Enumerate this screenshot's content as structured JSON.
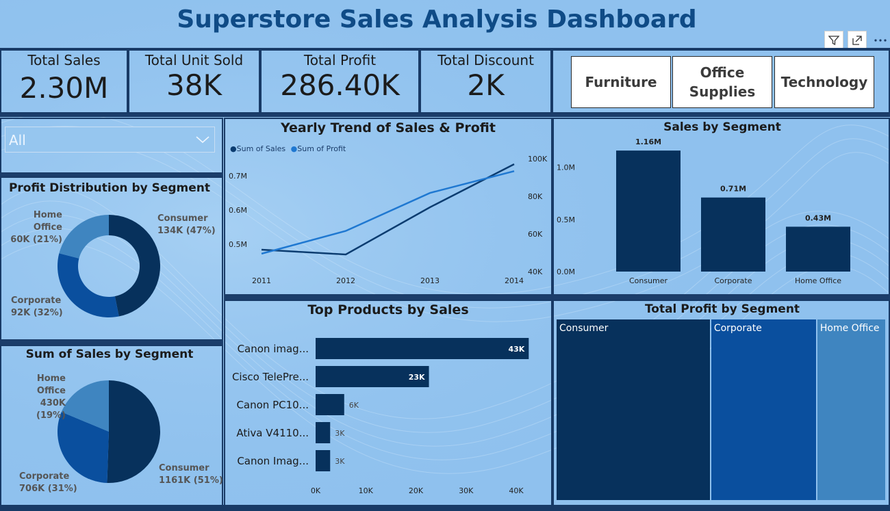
{
  "dashboard": {
    "title": "Superstore Sales Analysis Dashboard",
    "accent": "#0f4b86",
    "background": "#8fc1ee",
    "dark": "#07315c",
    "mid": "#0a4f9e",
    "light": "#3f85c0"
  },
  "kpis": [
    {
      "label": "Total Sales",
      "value": "2.30M"
    },
    {
      "label": "Total Unit Sold",
      "value": "38K"
    },
    {
      "label": "Total Profit",
      "value": "286.40K"
    },
    {
      "label": "Total Discount",
      "value": "2K"
    }
  ],
  "category_slicer": [
    "Furniture",
    "Office Supplies",
    "Technology"
  ],
  "visual_icons": [
    "filter-icon",
    "focus-mode-icon",
    "more-options-icon"
  ],
  "dropdown": {
    "value": "All"
  },
  "chart_data": [
    {
      "id": "profit_donut",
      "type": "pie",
      "title": "Profit Distribution by Segment",
      "donut": true,
      "categories": [
        "Consumer",
        "Corporate",
        "Home Office"
      ],
      "values": [
        134,
        92,
        60
      ],
      "labels": [
        {
          "name": "Consumer",
          "detail": "134K (47%)"
        },
        {
          "name": "Corporate",
          "detail": "92K (32%)"
        },
        {
          "name": "Home Office",
          "detail": "60K (21%)"
        }
      ]
    },
    {
      "id": "sales_pie",
      "type": "pie",
      "title": "Sum of Sales by Segment",
      "donut": false,
      "categories": [
        "Consumer",
        "Corporate",
        "Home Office"
      ],
      "values": [
        1161,
        706,
        430
      ],
      "labels": [
        {
          "name": "Consumer",
          "detail": "1161K (51%)"
        },
        {
          "name": "Corporate",
          "detail": "706K (31%)"
        },
        {
          "name": "Home Office",
          "detail": "430K (19%)"
        }
      ]
    },
    {
      "id": "yearly_trend",
      "type": "line",
      "title": "Yearly Trend of Sales & Profit",
      "x": [
        "2011",
        "2012",
        "2013",
        "2014"
      ],
      "series": [
        {
          "name": "Sum of Sales",
          "axis": "left",
          "values": [
            0.484,
            0.47,
            0.608,
            0.734
          ],
          "color": "#0b3c70"
        },
        {
          "name": "Sum of Profit",
          "axis": "right",
          "values": [
            49500,
            61600,
            81800,
            93400
          ],
          "color": "#1f78d1"
        }
      ],
      "left_ticks": [
        "0.5M",
        "0.6M",
        "0.7M"
      ],
      "left_tick_values": [
        0.5,
        0.6,
        0.7
      ],
      "left_range": [
        0.42,
        0.75
      ],
      "right_ticks": [
        "40K",
        "60K",
        "80K",
        "100K"
      ],
      "right_tick_values": [
        40000,
        60000,
        80000,
        100000
      ],
      "right_range": [
        40000,
        100000
      ]
    },
    {
      "id": "sales_by_segment",
      "type": "bar",
      "title": "Sales by Segment",
      "categories": [
        "Consumer",
        "Corporate",
        "Home Office"
      ],
      "values": [
        1.16,
        0.71,
        0.43
      ],
      "data_labels": [
        "1.16M",
        "0.71M",
        "0.43M"
      ],
      "y_ticks": [
        "0.0M",
        "0.5M",
        "1.0M"
      ],
      "y_tick_values": [
        0,
        0.5,
        1.0
      ],
      "ylim": [
        0,
        1.2
      ]
    },
    {
      "id": "top_products",
      "type": "bar",
      "orientation": "horizontal",
      "title": "Top Products by Sales",
      "categories": [
        "Canon imag...",
        "Cisco TelePre...",
        "Canon PC10...",
        "Ativa V4110...",
        "Canon Imag..."
      ],
      "values": [
        42500,
        22600,
        5700,
        2900,
        2900
      ],
      "data_labels": [
        "43K",
        "23K",
        "6K",
        "3K",
        "3K"
      ],
      "x_ticks": [
        "0K",
        "10K",
        "20K",
        "30K",
        "40K"
      ],
      "x_tick_values": [
        0,
        10000,
        20000,
        30000,
        40000
      ],
      "xlim": [
        0,
        40000
      ]
    },
    {
      "id": "profit_treemap",
      "type": "treemap",
      "title": "Total Profit by Segment",
      "categories": [
        "Consumer",
        "Corporate",
        "Home Office"
      ],
      "values": [
        134,
        92,
        60
      ]
    }
  ]
}
